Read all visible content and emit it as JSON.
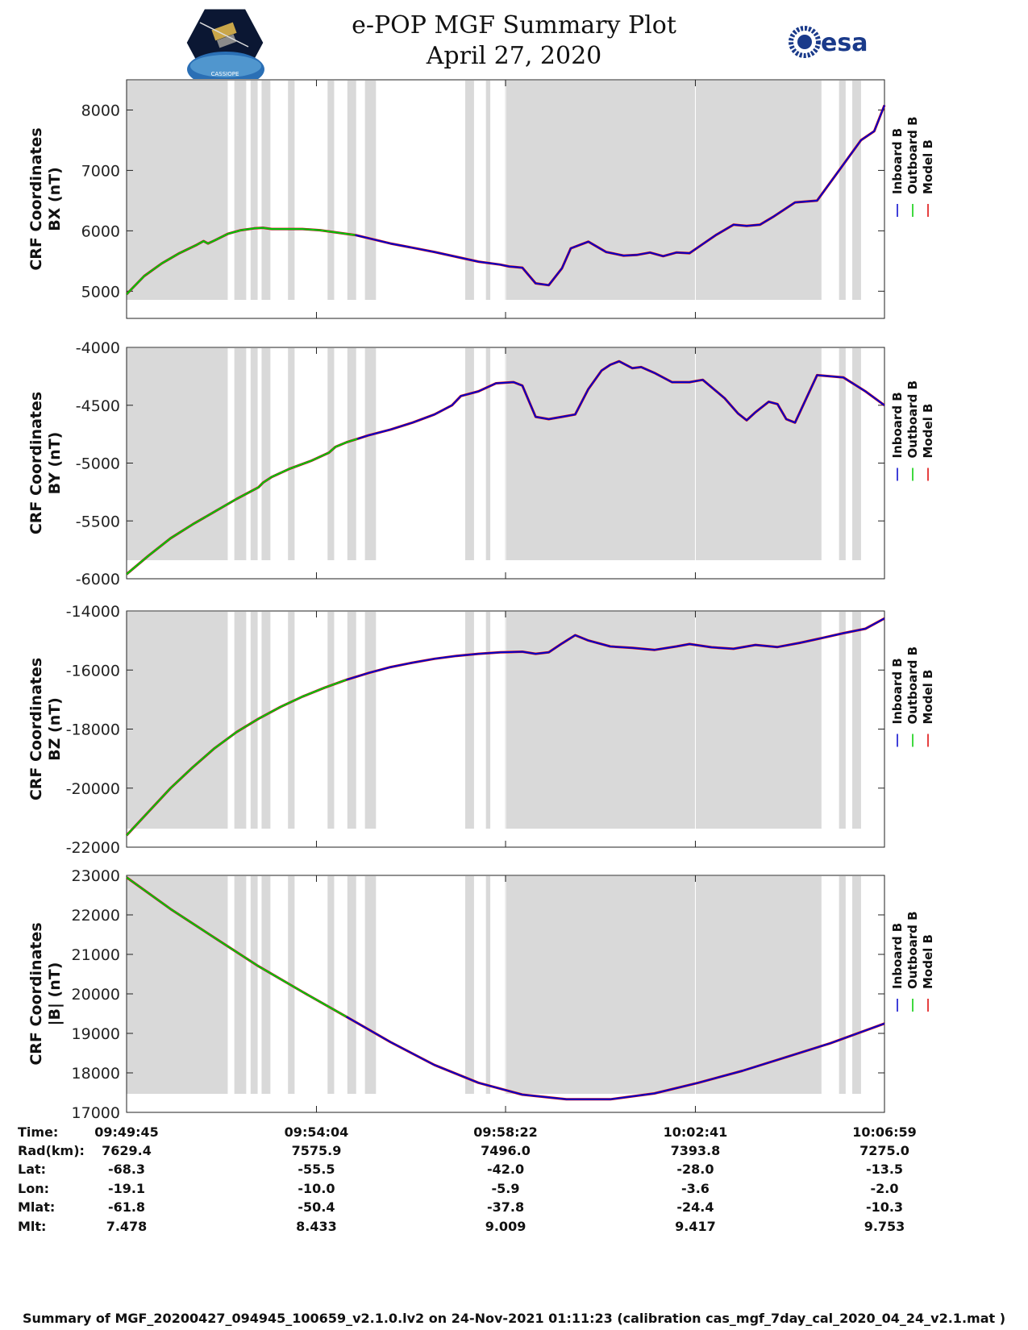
{
  "header": {
    "title": "e-POP MGF Summary Plot",
    "date": "April 27, 2020",
    "logo_left": "CASSIOPE",
    "logo_right": "esa"
  },
  "colors": {
    "inboard": "#0000cc",
    "outboard": "#00cc00",
    "model": "#dd0000",
    "shade": "#d9d9d9"
  },
  "chart_data": {
    "type": "line",
    "x": {
      "unit": "minutes since 09:49:45",
      "range": [
        0,
        17.233
      ],
      "tick_positions": [
        0,
        4.317,
        8.617,
        12.933,
        17.233
      ],
      "tick_labels": [
        "09:49:45",
        "09:54:04",
        "09:58:22",
        "10:02:41",
        "10:06:59"
      ]
    },
    "shaded_intervals": [
      [
        0,
        2.3
      ],
      [
        2.45,
        2.72
      ],
      [
        2.82,
        2.98
      ],
      [
        3.07,
        3.27
      ],
      [
        3.67,
        3.82
      ],
      [
        4.57,
        4.72
      ],
      [
        5.02,
        5.22
      ],
      [
        5.42,
        5.67
      ],
      [
        7.7,
        7.9
      ],
      [
        8.17,
        8.27
      ],
      [
        8.6,
        15.8
      ],
      [
        16.2,
        16.35
      ],
      [
        16.5,
        16.7
      ]
    ],
    "legend": [
      "Inboard B",
      "Outboard B",
      "Model B"
    ],
    "panels": [
      {
        "name": "bx",
        "ylabel": [
          "CRF Coordinates",
          "BX (nT)"
        ],
        "ylim": [
          4550,
          8500
        ],
        "yticks": [
          5000,
          6000,
          7000,
          8000
        ],
        "ytick_labels": [
          "5000",
          "6000",
          "7000",
          "8000"
        ],
        "green_end": 5.5,
        "series_x": [
          0,
          0.4,
          0.8,
          1.2,
          1.6,
          1.75,
          1.85,
          2.0,
          2.3,
          2.6,
          2.9,
          3.1,
          3.3,
          3.6,
          4.0,
          4.4,
          4.8,
          5.2,
          5.6,
          6.0,
          6.5,
          7.0,
          7.5,
          8.0,
          8.5,
          8.7,
          9.0,
          9.3,
          9.6,
          9.9,
          10.1,
          10.5,
          10.9,
          11.3,
          11.6,
          11.9,
          12.2,
          12.5,
          12.8,
          13.1,
          13.4,
          13.8,
          14.1,
          14.4,
          14.7,
          15.2,
          15.7,
          16.2,
          16.7,
          17.0,
          17.233
        ],
        "series_y": [
          4950,
          5250,
          5460,
          5630,
          5770,
          5830,
          5790,
          5840,
          5950,
          6010,
          6040,
          6050,
          6030,
          6030,
          6030,
          6010,
          5970,
          5930,
          5860,
          5790,
          5720,
          5650,
          5570,
          5490,
          5440,
          5410,
          5390,
          5130,
          5100,
          5380,
          5710,
          5820,
          5650,
          5590,
          5600,
          5640,
          5580,
          5640,
          5630,
          5780,
          5930,
          6100,
          6080,
          6100,
          6230,
          6470,
          6500,
          7000,
          7500,
          7650,
          8080
        ]
      },
      {
        "name": "by",
        "ylabel": [
          "CRF Coordinates",
          "BY (nT)"
        ],
        "ylim": [
          -6000,
          -4000
        ],
        "yticks": [
          -6000,
          -5500,
          -5000,
          -4500,
          -4000
        ],
        "ytick_labels": [
          "-6000",
          "-5500",
          "-5000",
          "-4500",
          "-4000"
        ],
        "green_end": 5.25,
        "series_x": [
          0,
          0.5,
          1.0,
          1.5,
          2.0,
          2.5,
          3.0,
          3.1,
          3.3,
          3.7,
          4.2,
          4.6,
          4.75,
          5.0,
          5.25,
          5.5,
          6.0,
          6.5,
          7.0,
          7.4,
          7.6,
          8.0,
          8.4,
          8.8,
          9.0,
          9.3,
          9.6,
          9.9,
          10.2,
          10.5,
          10.8,
          11.0,
          11.2,
          11.5,
          11.7,
          12.0,
          12.4,
          12.8,
          13.1,
          13.6,
          13.9,
          14.1,
          14.3,
          14.6,
          14.8,
          15.0,
          15.2,
          15.7,
          16.3,
          16.8,
          17.233
        ],
        "series_y": [
          -5960,
          -5800,
          -5650,
          -5530,
          -5420,
          -5310,
          -5210,
          -5170,
          -5120,
          -5050,
          -4980,
          -4910,
          -4860,
          -4820,
          -4790,
          -4760,
          -4710,
          -4650,
          -4580,
          -4500,
          -4420,
          -4380,
          -4310,
          -4300,
          -4330,
          -4600,
          -4620,
          -4600,
          -4580,
          -4360,
          -4200,
          -4150,
          -4120,
          -4180,
          -4170,
          -4220,
          -4300,
          -4300,
          -4280,
          -4440,
          -4570,
          -4630,
          -4560,
          -4470,
          -4490,
          -4620,
          -4650,
          -4240,
          -4260,
          -4380,
          -4500
        ]
      },
      {
        "name": "bz",
        "ylabel": [
          "CRF Coordinates",
          "BZ (nT)"
        ],
        "ylim": [
          -22000,
          -14000
        ],
        "yticks": [
          -22000,
          -20000,
          -18000,
          -16000,
          -14000
        ],
        "ytick_labels": [
          "-22000",
          "-20000",
          "-18000",
          "-16000",
          "-14000"
        ],
        "green_end": 5.3,
        "series_x": [
          0,
          0.5,
          1.0,
          1.5,
          2.0,
          2.5,
          3.0,
          3.5,
          4.0,
          4.5,
          5.0,
          5.5,
          6.0,
          6.5,
          7.0,
          7.5,
          8.0,
          8.5,
          9.0,
          9.3,
          9.6,
          9.9,
          10.2,
          10.5,
          11.0,
          11.5,
          12.0,
          12.5,
          12.8,
          13.3,
          13.8,
          14.3,
          14.8,
          15.3,
          15.8,
          16.3,
          16.8,
          17.233
        ],
        "series_y": [
          -21600,
          -20800,
          -20000,
          -19300,
          -18650,
          -18100,
          -17650,
          -17250,
          -16900,
          -16600,
          -16330,
          -16100,
          -15900,
          -15750,
          -15620,
          -15520,
          -15450,
          -15400,
          -15380,
          -15450,
          -15400,
          -15100,
          -14820,
          -15000,
          -15200,
          -15250,
          -15320,
          -15200,
          -15120,
          -15230,
          -15280,
          -15150,
          -15220,
          -15080,
          -14920,
          -14750,
          -14600,
          -14250
        ]
      },
      {
        "name": "bmag",
        "ylabel": [
          "CRF Coordinates",
          "|B| (nT)"
        ],
        "ylim": [
          17000,
          23000
        ],
        "yticks": [
          17000,
          18000,
          19000,
          20000,
          21000,
          22000,
          23000
        ],
        "ytick_labels": [
          "17000",
          "18000",
          "19000",
          "20000",
          "21000",
          "22000",
          "23000"
        ],
        "green_end": 5.2,
        "series_x": [
          0,
          1,
          2,
          3,
          4,
          5,
          6,
          7,
          8,
          9,
          10,
          11,
          12,
          13,
          14,
          15,
          16,
          17.233
        ],
        "series_y": [
          22950,
          22150,
          21420,
          20700,
          20050,
          19420,
          18780,
          18200,
          17750,
          17450,
          17330,
          17330,
          17480,
          17750,
          18050,
          18400,
          18750,
          19250
        ]
      }
    ]
  },
  "ephemeris": {
    "labels": [
      "Time:",
      "Rad(km):",
      "Lat:",
      "Lon:",
      "Mlat:",
      "Mlt:"
    ],
    "columns": [
      [
        "09:49:45",
        "7629.4",
        "-68.3",
        "-19.1",
        "-61.8",
        "7.478"
      ],
      [
        "09:54:04",
        "7575.9",
        "-55.5",
        "-10.0",
        "-50.4",
        "8.433"
      ],
      [
        "09:58:22",
        "7496.0",
        "-42.0",
        "-5.9",
        "-37.8",
        "9.009"
      ],
      [
        "10:02:41",
        "7393.8",
        "-28.0",
        "-3.6",
        "-24.4",
        "9.417"
      ],
      [
        "10:06:59",
        "7275.0",
        "-13.5",
        "-2.0",
        "-10.3",
        "9.753"
      ]
    ]
  },
  "footer": "Summary of MGF_20200427_094945_100659_v2.1.0.lv2 on 24-Nov-2021 01:11:23 (calibration cas_mgf_7day_cal_2020_04_24_v2.1.mat )"
}
